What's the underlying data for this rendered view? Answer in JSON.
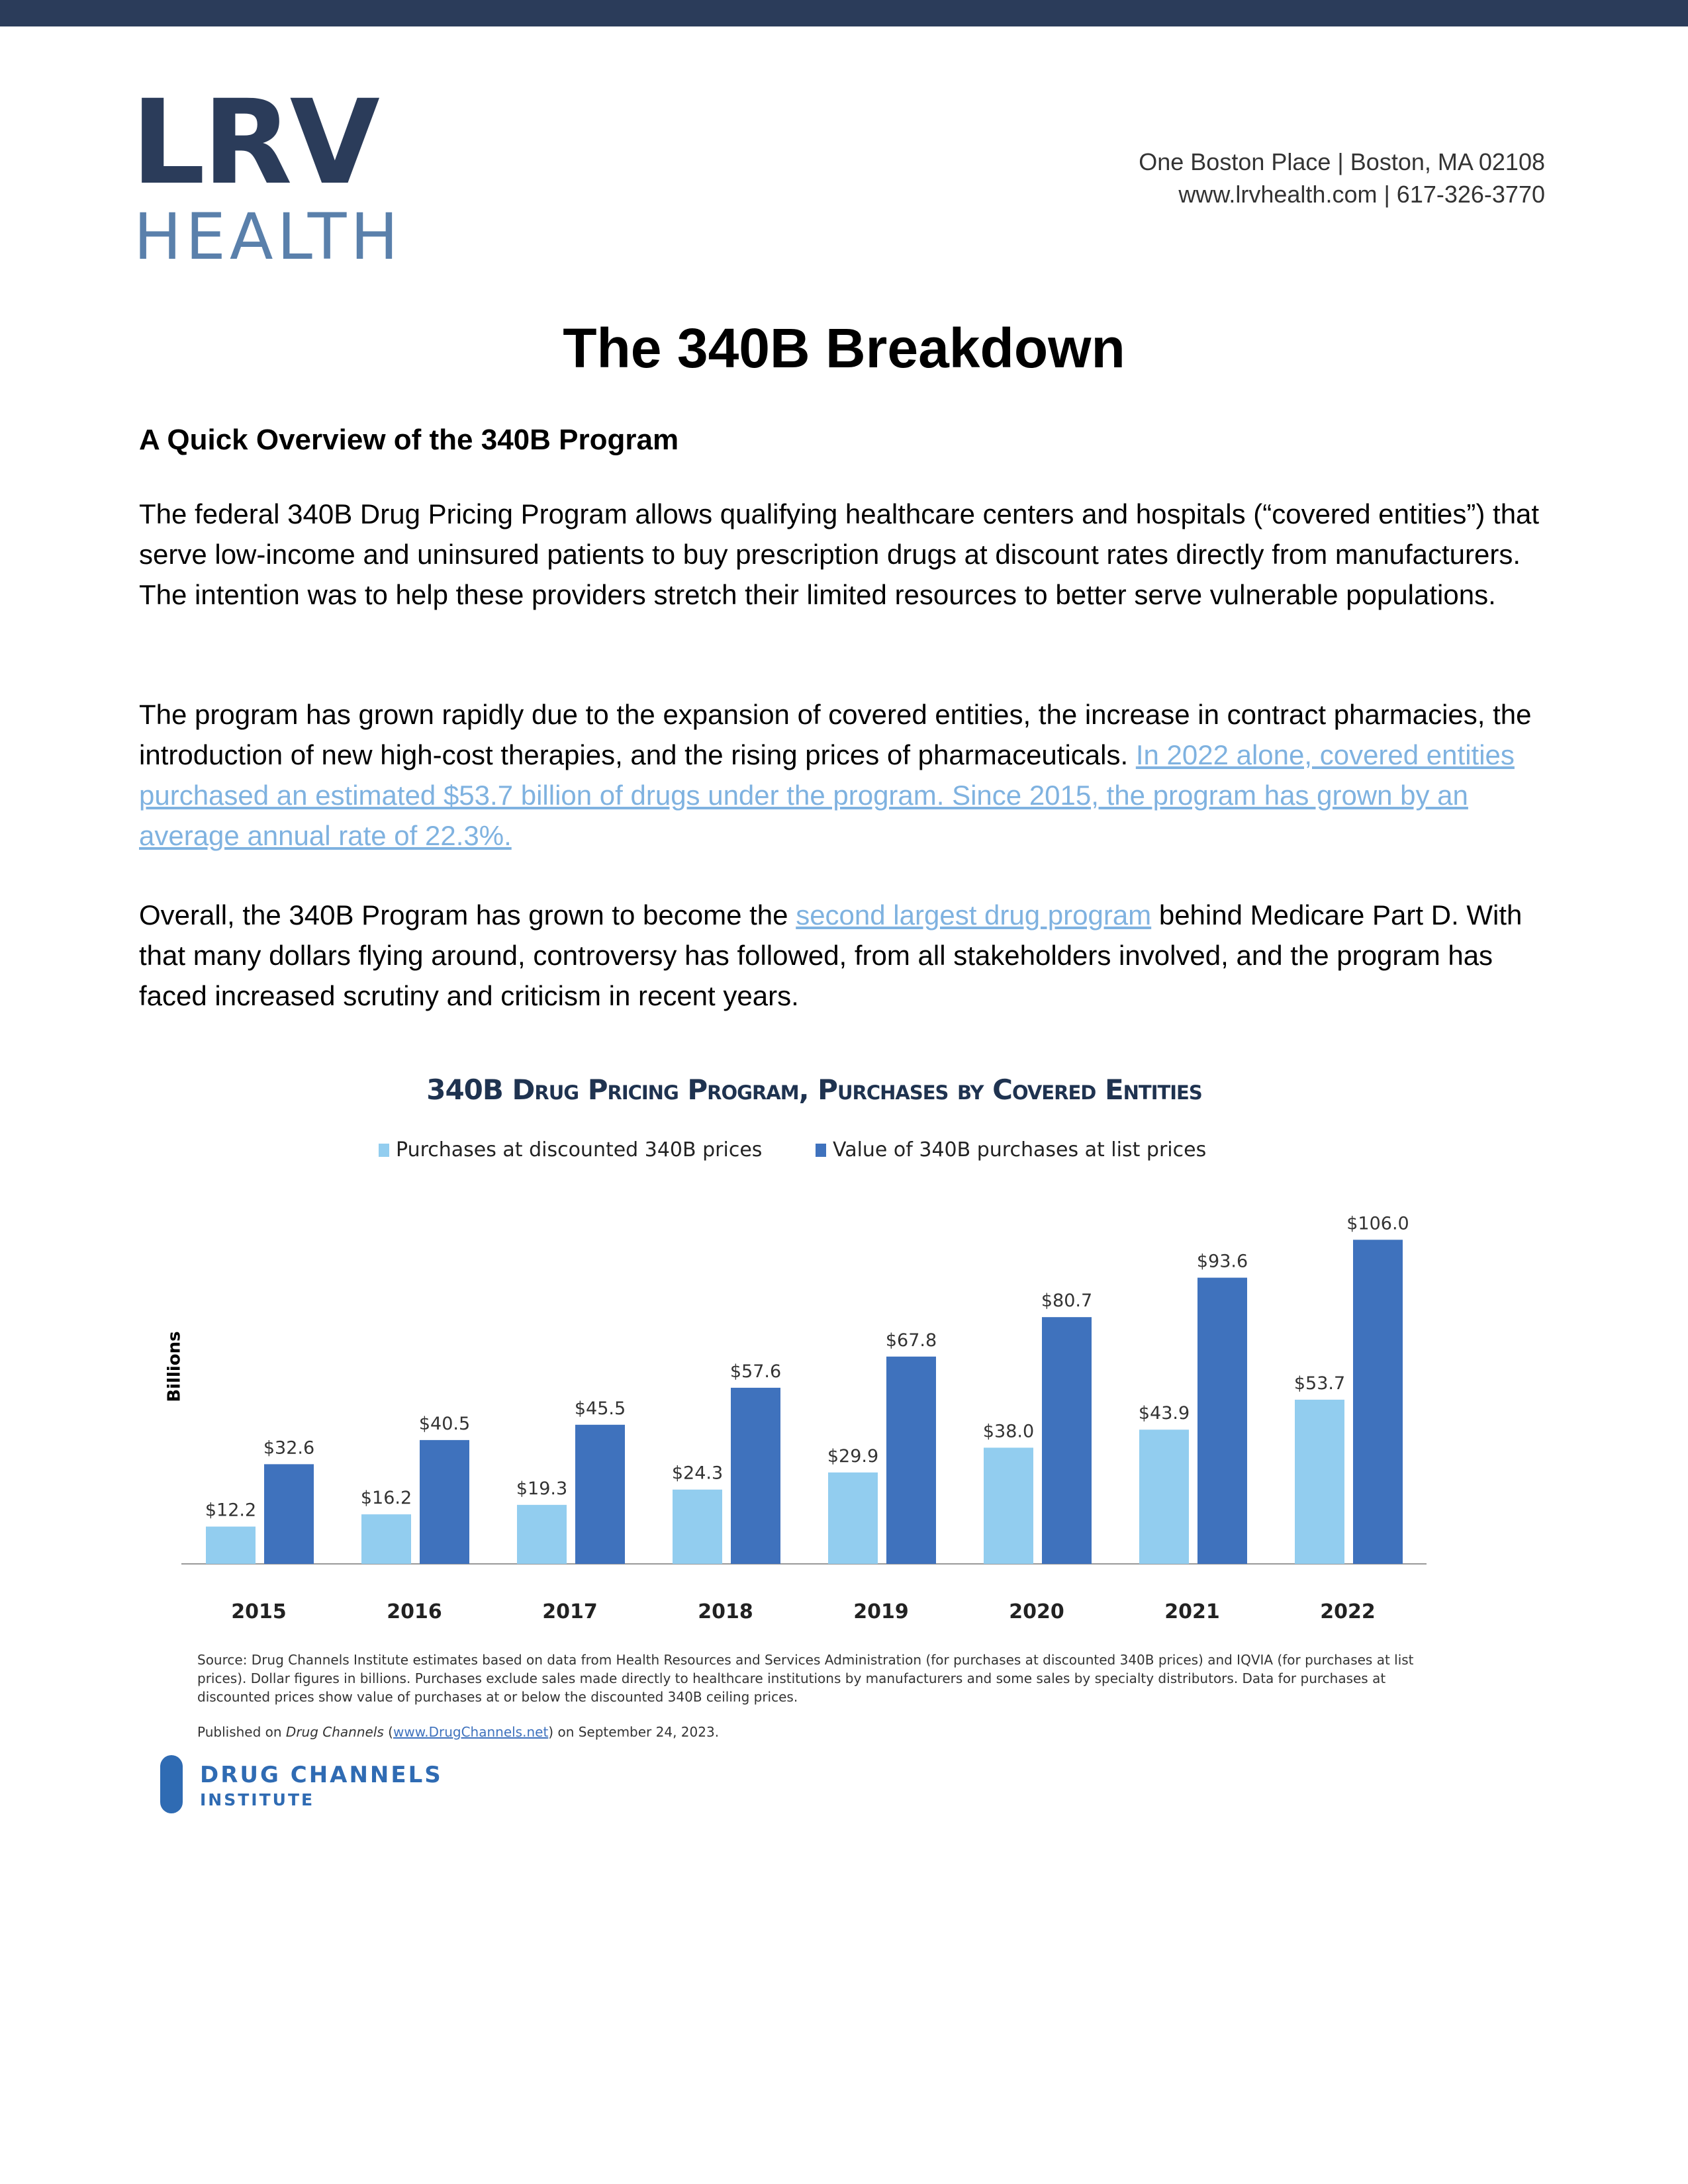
{
  "header": {
    "logo_main": "LRV",
    "logo_sub": "HEALTH",
    "address_line1": "One Boston Place | Boston, MA 02108",
    "address_line2": "www.lrvhealth.com | 617-326-3770"
  },
  "title": "The 340B Breakdown",
  "subheading": "A Quick Overview of the 340B Program",
  "paragraphs": {
    "p1": "The federal 340B Drug Pricing Program allows qualifying healthcare centers and hospitals (“covered entities”) that serve low-income and uninsured patients to buy prescription drugs at discount rates directly from manufacturers. The intention was to help these providers stretch their limited resources to better serve vulnerable populations.",
    "p2_text": "The program has grown rapidly due to the expansion of covered entities, the increase in contract pharmacies, the introduction of new high-cost therapies, and the rising prices of pharmaceuticals. ",
    "p2_link": "In 2022 alone, covered entities purchased an estimated $53.7 billion of drugs under the program. Since 2015, the program has grown by an average annual rate of 22.3%.",
    "p3_before": "Overall, the 340B Program has grown to become the ",
    "p3_link": "second largest drug program",
    "p3_after": " behind Medicare Part D. With that many dollars flying around, controversy has followed, from all stakeholders involved, and the program has faced increased scrutiny and criticism in recent years."
  },
  "chart_data": {
    "type": "bar",
    "title": "340B Drug Pricing Program, Purchases by Covered Entities",
    "ylabel": "Billions",
    "xlabel": "",
    "categories": [
      "2015",
      "2016",
      "2017",
      "2018",
      "2019",
      "2020",
      "2021",
      "2022"
    ],
    "series": [
      {
        "name": "Purchases at discounted 340B prices",
        "color": "#92cdef",
        "values": [
          12.2,
          16.2,
          19.3,
          24.3,
          29.9,
          38.0,
          43.9,
          53.7
        ]
      },
      {
        "name": "Value of 340B purchases at list prices",
        "color": "#3f72bd",
        "values": [
          32.6,
          40.5,
          45.5,
          57.6,
          67.8,
          80.7,
          93.6,
          106.0
        ]
      }
    ],
    "ylim": [
      0,
      110
    ],
    "legend_position": "top-center",
    "grid": false
  },
  "chart_notes": {
    "source": "Source: Drug Channels Institute estimates based on data from Health Resources and Services Administration (for purchases at discounted 340B prices) and IQVIA (for purchases at list prices). Dollar figures in billions. Purchases exclude sales made directly to healthcare institutions by manufacturers and some sales by specialty distributors. Data for purchases at discounted prices show value of purchases at or below the discounted 340B ceiling prices.",
    "published_prefix": "Published on ",
    "published_italic": "Drug Channels",
    "published_link": "www.DrugChannels.net",
    "published_suffix": " on September 24, 2023.",
    "logo_name": "DRUG CHANNELS",
    "logo_sub": "INSTITUTE"
  }
}
